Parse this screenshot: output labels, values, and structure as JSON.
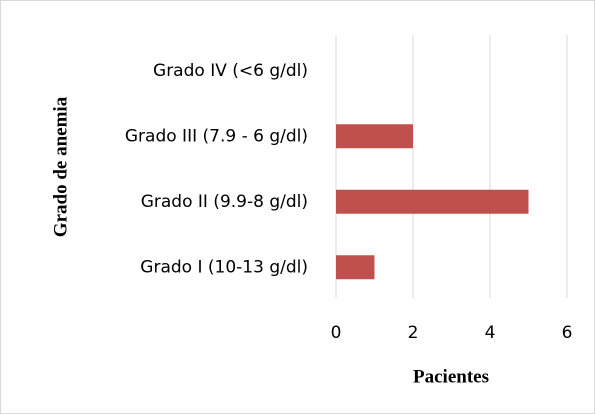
{
  "chart_data": {
    "type": "bar",
    "orientation": "horizontal",
    "categories": [
      "Grado I (10-13 g/dl)",
      "Grado II (9.9-8 g/dl)",
      "Grado III (7.9 - 6 g/dl)",
      "Grado IV (<6 g/dl)"
    ],
    "values": [
      1,
      5,
      2,
      0
    ],
    "color": "#c0504d",
    "xlim": [
      0,
      6
    ],
    "xticks": [
      0,
      2,
      4,
      6
    ],
    "grid": true,
    "x_label": "Pacientes",
    "y_label": "Grado de anemia"
  }
}
